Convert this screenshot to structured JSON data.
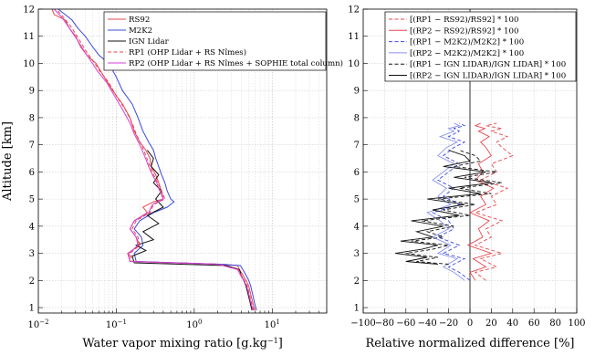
{
  "chart_data": [
    {
      "type": "line",
      "xlabel": "Water vapor mixing ratio [g.kg",
      "xlabel_sup": "−1",
      "xlabel_end": "]",
      "ylabel": "Altitude [km]",
      "xscale": "log",
      "xlim": [
        0.01,
        50
      ],
      "ylim": [
        0.8,
        12
      ],
      "xtick_labels": [
        {
          "base": "10",
          "exp": "−2",
          "value": 0.01
        },
        {
          "base": "10",
          "exp": "−1",
          "value": 0.1
        },
        {
          "base": "10",
          "exp": "0",
          "value": 1
        },
        {
          "base": "10",
          "exp": "1",
          "value": 10
        }
      ],
      "yticks": [
        1,
        2,
        3,
        4,
        5,
        6,
        7,
        8,
        9,
        10,
        11,
        12
      ],
      "grid": true,
      "legend_position": "top-right",
      "series": [
        {
          "name": "RS92",
          "color": "#e8474f",
          "dash": "solid",
          "x": [
            6.0,
            5.6,
            5.3,
            5.0,
            4.6,
            4.2,
            3.8,
            3.6,
            2.0,
            0.15,
            0.14,
            0.2,
            0.18,
            0.15,
            0.17,
            0.25,
            0.22,
            0.3,
            0.4,
            0.38,
            0.35,
            0.32,
            0.28,
            0.27,
            0.24,
            0.2,
            0.17,
            0.15,
            0.12,
            0.09,
            0.07,
            0.055,
            0.042,
            0.035,
            0.03,
            0.025,
            0.022,
            0.016,
            0.015
          ],
          "y": [
            0.9,
            1.2,
            1.5,
            1.8,
            2.0,
            2.2,
            2.4,
            2.55,
            2.6,
            2.7,
            3.0,
            3.3,
            3.6,
            3.9,
            4.2,
            4.5,
            4.7,
            4.9,
            5.0,
            5.3,
            5.6,
            5.9,
            6.2,
            6.5,
            6.8,
            7.1,
            7.5,
            8.0,
            8.5,
            9.0,
            9.5,
            10.0,
            10.3,
            10.6,
            11.0,
            11.3,
            11.6,
            11.8,
            12.0
          ]
        },
        {
          "name": "M2K2",
          "color": "#3a49e0",
          "dash": "solid",
          "x": [
            6.3,
            5.9,
            5.6,
            5.3,
            5.0,
            4.6,
            4.2,
            3.9,
            2.2,
            0.18,
            0.17,
            0.22,
            0.21,
            0.17,
            0.2,
            0.3,
            0.45,
            0.55,
            0.5,
            0.45,
            0.42,
            0.38,
            0.35,
            0.32,
            0.3,
            0.26,
            0.22,
            0.19,
            0.16,
            0.12,
            0.1,
            0.08,
            0.06,
            0.05,
            0.04,
            0.032,
            0.027,
            0.022,
            0.018
          ],
          "y": [
            0.9,
            1.2,
            1.5,
            1.8,
            2.0,
            2.2,
            2.4,
            2.55,
            2.6,
            2.7,
            3.0,
            3.3,
            3.6,
            3.9,
            4.2,
            4.5,
            4.7,
            4.9,
            5.0,
            5.3,
            5.6,
            5.9,
            6.2,
            6.5,
            6.8,
            7.1,
            7.5,
            8.0,
            8.5,
            9.0,
            9.5,
            10.0,
            10.3,
            10.6,
            11.0,
            11.3,
            11.6,
            11.8,
            12.0
          ]
        },
        {
          "name": "IGN Lidar",
          "color": "#111111",
          "dash": "solid",
          "x": [
            5.5,
            5.2,
            4.9,
            4.6,
            4.3,
            4.0,
            3.8,
            2.6,
            0.17,
            0.16,
            0.24,
            0.18,
            0.3,
            0.22,
            0.35,
            0.25,
            0.4,
            0.32,
            0.38,
            0.3,
            0.35,
            0.28,
            0.3,
            0.25
          ],
          "y": [
            0.9,
            1.2,
            1.5,
            1.8,
            2.0,
            2.2,
            2.4,
            2.55,
            2.65,
            2.9,
            3.1,
            3.3,
            3.5,
            3.8,
            4.1,
            4.4,
            4.7,
            5.0,
            5.3,
            5.6,
            5.9,
            6.2,
            6.5,
            6.8
          ]
        },
        {
          "name": "RP1 (OHP Lidar + RS Nîmes)",
          "color": "#e8474f",
          "dash": "dashed",
          "x": [
            5.8,
            5.4,
            5.1,
            4.8,
            4.4,
            4.0,
            3.7,
            2.1,
            0.16,
            0.15,
            0.2,
            0.19,
            0.16,
            0.18,
            0.27,
            0.3,
            0.42,
            0.38,
            0.34,
            0.3,
            0.27,
            0.24,
            0.21,
            0.18,
            0.16,
            0.13,
            0.1,
            0.08,
            0.062,
            0.05,
            0.04,
            0.033,
            0.027,
            0.021,
            0.017
          ],
          "y": [
            0.9,
            1.2,
            1.5,
            1.8,
            2.0,
            2.2,
            2.4,
            2.6,
            2.7,
            3.0,
            3.3,
            3.6,
            3.9,
            4.2,
            4.5,
            4.8,
            5.0,
            5.3,
            5.6,
            5.9,
            6.2,
            6.6,
            7.0,
            7.4,
            7.8,
            8.3,
            8.8,
            9.3,
            9.7,
            10.1,
            10.5,
            10.9,
            11.3,
            11.7,
            12.0
          ]
        },
        {
          "name": "RP2 (OHP Lidar + RS Nîmes + SOPHIE total column)",
          "color": "#d63fd6",
          "dash": "solid",
          "x": [
            5.7,
            5.3,
            5.0,
            4.7,
            4.3,
            3.9,
            3.6,
            2.0,
            0.15,
            0.145,
            0.19,
            0.18,
            0.15,
            0.17,
            0.26,
            0.29,
            0.4,
            0.36,
            0.33,
            0.29,
            0.26,
            0.23,
            0.2,
            0.17,
            0.15,
            0.12,
            0.095,
            0.075,
            0.058,
            0.047,
            0.038,
            0.031,
            0.025,
            0.02,
            0.016
          ],
          "y": [
            0.9,
            1.2,
            1.5,
            1.8,
            2.0,
            2.2,
            2.4,
            2.6,
            2.7,
            3.0,
            3.3,
            3.6,
            3.9,
            4.2,
            4.5,
            4.8,
            5.0,
            5.3,
            5.6,
            5.9,
            6.2,
            6.6,
            7.0,
            7.4,
            7.8,
            8.3,
            8.8,
            9.3,
            9.7,
            10.1,
            10.5,
            10.9,
            11.3,
            11.7,
            12.0
          ]
        }
      ]
    },
    {
      "type": "line",
      "xlabel": "Relative normalized difference [%]",
      "ylabel": "",
      "xlim": [
        -100,
        100
      ],
      "ylim": [
        0.8,
        12
      ],
      "xticks": [
        -100,
        -80,
        -60,
        -40,
        -20,
        0,
        20,
        40,
        60,
        80,
        100
      ],
      "xtick_labels": [
        "−100",
        "−80",
        "−60",
        "−40",
        "−20",
        "0",
        "20",
        "40",
        "60",
        "80",
        "100"
      ],
      "yticks": [
        1,
        2,
        3,
        4,
        5,
        6,
        7,
        8,
        9,
        10,
        11,
        12
      ],
      "grid": true,
      "zero_line": true,
      "legend_position": "top-right",
      "series": [
        {
          "name": "[(RP1 − RS92)/RS92] * 100",
          "color": "#e8474f",
          "dash": "dashed",
          "x": [
            15,
            5,
            25,
            10,
            30,
            5,
            20,
            15,
            30,
            5,
            25,
            20,
            35,
            10,
            25,
            20,
            40,
            30,
            25,
            35,
            20,
            30,
            15,
            25
          ],
          "y": [
            2.0,
            2.3,
            2.5,
            2.8,
            3.0,
            3.3,
            3.6,
            3.9,
            4.2,
            4.5,
            4.8,
            5.1,
            5.4,
            5.7,
            6.0,
            6.3,
            6.6,
            6.9,
            7.1,
            7.3,
            7.5,
            7.6,
            7.7,
            7.8
          ]
        },
        {
          "name": "[(RP2 − RS92)/RS92] * 100",
          "color": "#e8474f",
          "dash": "solid",
          "x": [
            5,
            0,
            15,
            3,
            20,
            -2,
            12,
            8,
            18,
            0,
            15,
            10,
            22,
            5,
            12,
            8,
            20,
            15,
            10,
            18,
            8,
            14,
            5,
            10
          ],
          "y": [
            2.0,
            2.3,
            2.5,
            2.8,
            3.0,
            3.3,
            3.6,
            3.9,
            4.2,
            4.5,
            4.8,
            5.1,
            5.4,
            5.7,
            6.0,
            6.3,
            6.6,
            6.9,
            7.1,
            7.3,
            7.5,
            7.6,
            7.7,
            7.8
          ]
        },
        {
          "name": "[(RP1 − M2K2)/M2K2] * 100",
          "color": "#3a49e0",
          "dash": "dashed",
          "x": [
            0,
            -10,
            -20,
            -5,
            -25,
            -10,
            -30,
            -15,
            -20,
            -35,
            -10,
            -25,
            -15,
            -30,
            -20,
            -10,
            -25,
            -15,
            -5,
            -20,
            -10,
            -15,
            -5,
            -10
          ],
          "y": [
            2.0,
            2.3,
            2.5,
            2.8,
            3.0,
            3.3,
            3.6,
            3.9,
            4.2,
            4.5,
            4.8,
            5.1,
            5.4,
            5.7,
            6.0,
            6.3,
            6.6,
            6.9,
            7.1,
            7.3,
            7.5,
            7.6,
            7.7,
            7.8
          ]
        },
        {
          "name": "[(RP2 − M2K2)/M2K2] * 100",
          "color": "#8a92f0",
          "dash": "solid",
          "x": [
            -5,
            -15,
            -25,
            -12,
            -30,
            -18,
            -35,
            -20,
            -28,
            -40,
            -18,
            -30,
            -22,
            -35,
            -25,
            -15,
            -30,
            -22,
            -12,
            -28,
            -15,
            -20,
            -10,
            -15
          ],
          "y": [
            2.0,
            2.3,
            2.5,
            2.8,
            3.0,
            3.3,
            3.6,
            3.9,
            4.2,
            4.5,
            4.8,
            5.1,
            5.4,
            5.7,
            6.0,
            6.3,
            6.6,
            6.9,
            7.1,
            7.3,
            7.5,
            7.6,
            7.7,
            7.8
          ]
        },
        {
          "name": "[(RP1 − IGN LIDAR)/IGN LIDAR] * 100",
          "color": "#111111",
          "dash": "dashed",
          "x": [
            -20,
            -50,
            -30,
            -60,
            -35,
            -20,
            -55,
            -25,
            -40,
            -15,
            -45,
            0,
            -25,
            5,
            -30,
            20,
            -10,
            30,
            -5,
            25,
            -15,
            10,
            5,
            -10
          ],
          "y": [
            2.6,
            2.7,
            2.85,
            3.0,
            3.15,
            3.3,
            3.45,
            3.6,
            3.8,
            4.0,
            4.2,
            4.4,
            4.6,
            4.8,
            5.0,
            5.2,
            5.4,
            5.6,
            5.8,
            6.0,
            6.2,
            6.4,
            6.6,
            6.8
          ]
        },
        {
          "name": "[(RP2 − IGN LIDAR)/IGN LIDAR] * 100",
          "color": "#111111",
          "dash": "solid",
          "x": [
            -30,
            -60,
            -40,
            -70,
            -45,
            -30,
            -65,
            -35,
            -50,
            -25,
            -55,
            -10,
            -35,
            -5,
            -40,
            10,
            -20,
            20,
            -15,
            15,
            -25,
            0,
            -5,
            -20
          ],
          "y": [
            2.6,
            2.7,
            2.85,
            3.0,
            3.15,
            3.3,
            3.45,
            3.6,
            3.8,
            4.0,
            4.2,
            4.4,
            4.6,
            4.8,
            5.0,
            5.2,
            5.4,
            5.6,
            5.8,
            6.0,
            6.2,
            6.4,
            6.6,
            6.8
          ]
        }
      ]
    }
  ]
}
